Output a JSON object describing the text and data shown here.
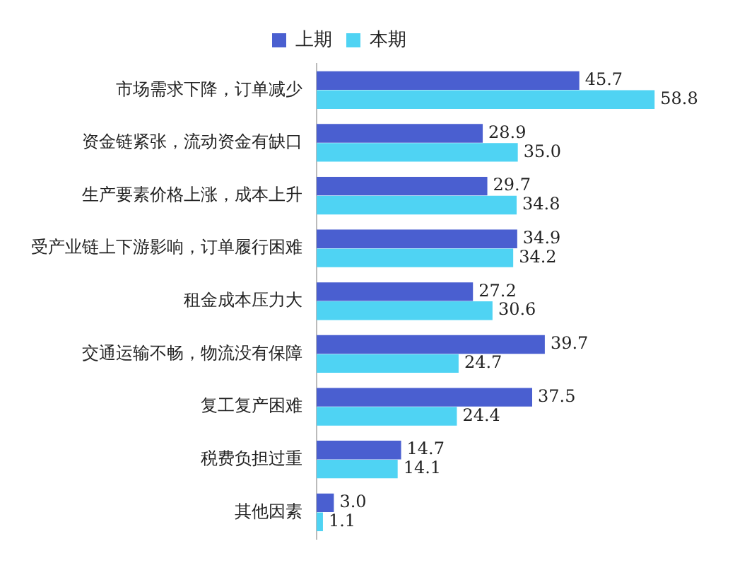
{
  "chart_data": {
    "type": "bar",
    "orientation": "horizontal",
    "legend": "top",
    "grid": false,
    "categories": [
      "市场需求下降，订单减少",
      "资金链紧张，流动资金有缺口",
      "生产要素价格上涨，成本上升",
      "受产业链上下游影响，订单履行困难",
      "租金成本压力大",
      "交通运输不畅，物流没有保障",
      "复工复产困难",
      "税费负担过重",
      "其他因素"
    ],
    "series": [
      {
        "name": "上期",
        "color": "#4a5fd0",
        "values": [
          45.7,
          28.9,
          29.7,
          34.9,
          27.2,
          39.7,
          37.5,
          14.7,
          3.0
        ],
        "value_labels": [
          "45.7",
          "28.9",
          "29.7",
          "34.9",
          "27.2",
          "39.7",
          "37.5",
          "14.7",
          "3.0"
        ]
      },
      {
        "name": "本期",
        "color": "#4fd3f3",
        "values": [
          58.8,
          35.0,
          34.8,
          34.2,
          30.6,
          24.7,
          24.4,
          14.1,
          1.1
        ],
        "value_labels": [
          "58.8",
          "35.0",
          "34.8",
          "34.2",
          "30.6",
          "24.7",
          "24.4",
          "14.1",
          "1.1"
        ]
      }
    ]
  }
}
